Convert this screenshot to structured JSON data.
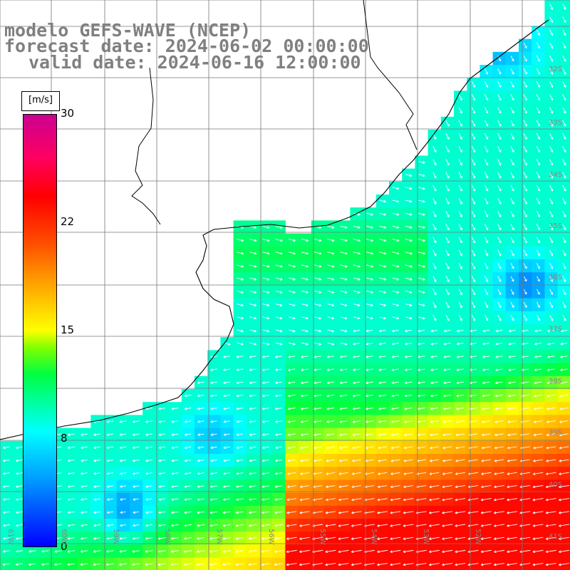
{
  "title": {
    "line1": "modelo GEFS-WAVE (NCEP)",
    "line2": "forecast date: 2024-06-02 00:00:00",
    "line3": "valid date: 2024-06-16 12:00:00"
  },
  "colorbar": {
    "unit": "[m/s]",
    "ticks": [
      "30",
      "22",
      "15",
      "8",
      "0"
    ],
    "colors": [
      "#0000ff",
      "#00a0ff",
      "#00ffff",
      "#00ff40",
      "#ffff00",
      "#ff9900",
      "#ff0000",
      "#cc0090"
    ]
  },
  "lat_labels": [
    "32S",
    "33S",
    "34S",
    "35S",
    "36S",
    "37S",
    "38S",
    "39S",
    "40S",
    "41S"
  ],
  "lon_labels": [
    "61W",
    "60W",
    "59W",
    "58W",
    "57W",
    "56W",
    "55W",
    "54W",
    "53W",
    "52W"
  ]
}
